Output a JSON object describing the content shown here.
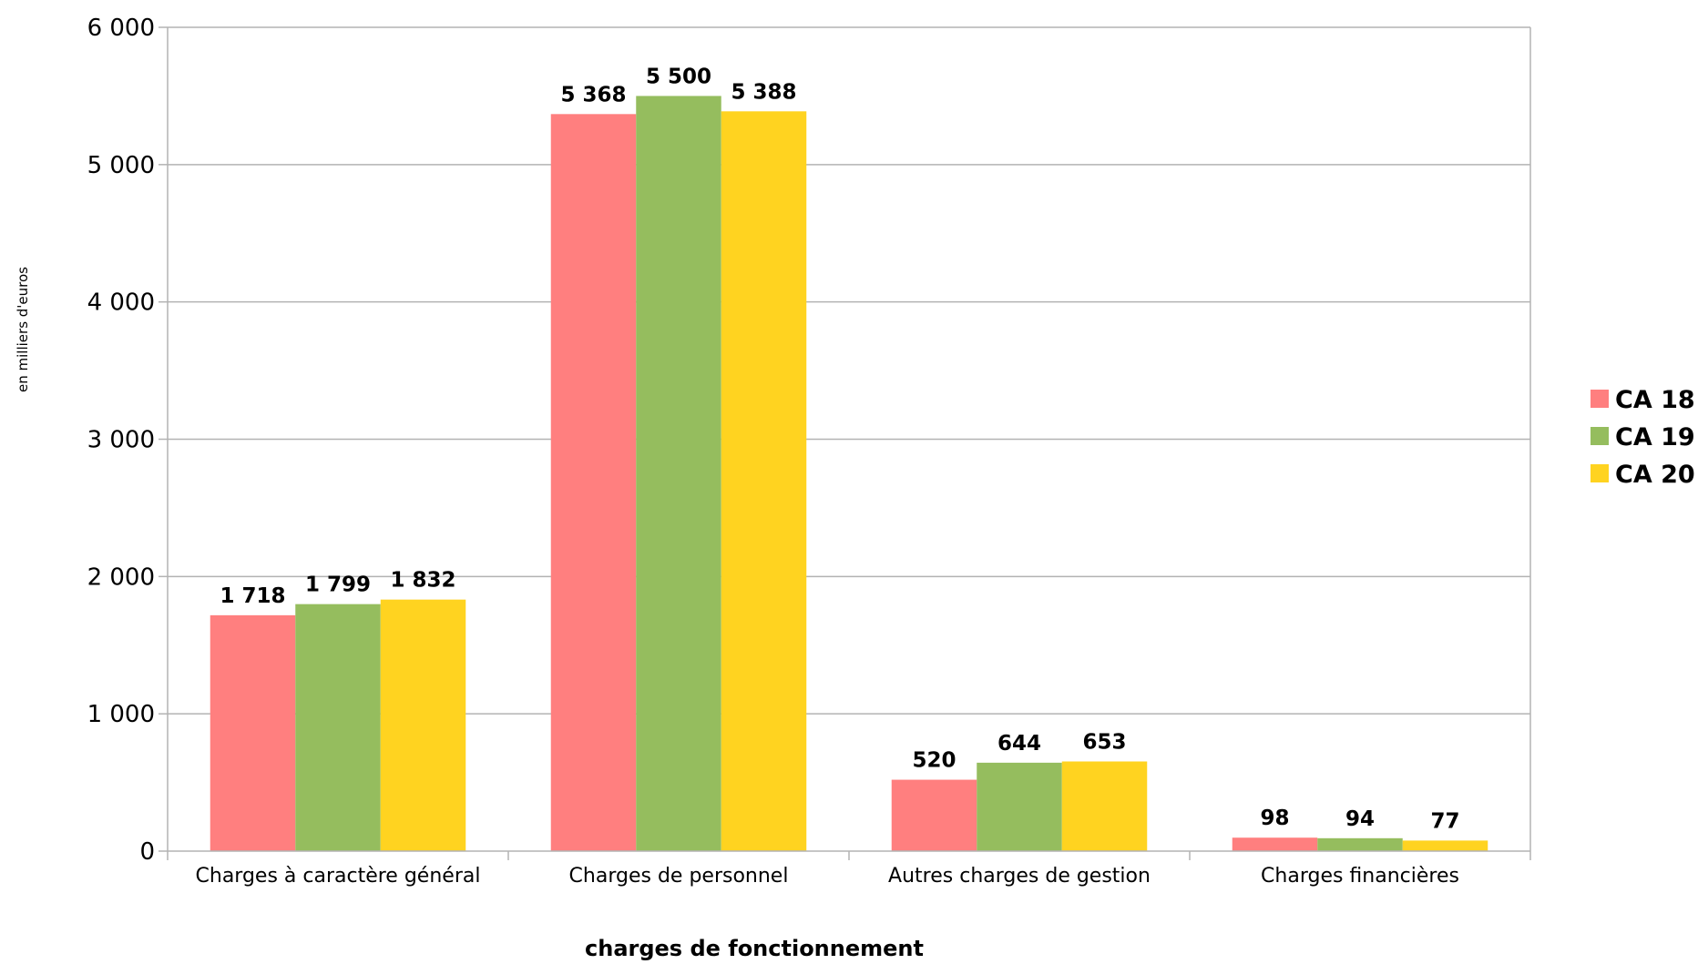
{
  "chart_data": {
    "type": "bar",
    "categories": [
      "Charges à caractère général",
      "Charges de personnel",
      "Autres charges de gestion",
      "Charges financières"
    ],
    "series": [
      {
        "name": "CA 18",
        "color": "#ff7f7f",
        "values": [
          1718,
          5368,
          520,
          98
        ],
        "labels": [
          "1 718",
          "5 368",
          "520",
          "98"
        ]
      },
      {
        "name": "CA 19",
        "color": "#95bd5e",
        "values": [
          1799,
          5500,
          644,
          94
        ],
        "labels": [
          "1 799",
          "5 500",
          "644",
          "94"
        ]
      },
      {
        "name": "CA 20",
        "color": "#ffd320",
        "values": [
          1832,
          5388,
          653,
          77
        ],
        "labels": [
          "1 832",
          "5 388",
          "653",
          "77"
        ]
      }
    ],
    "xlabel": "charges de fonctionnement",
    "ylabel": "en milliers d'euros",
    "ylim": [
      0,
      6000
    ],
    "yticks": [
      0,
      1000,
      2000,
      3000,
      4000,
      5000,
      6000
    ],
    "ytick_labels": [
      "0",
      "1 000",
      "2 000",
      "3 000",
      "4 000",
      "5 000",
      "6 000"
    ],
    "grid": true,
    "legend": "right"
  }
}
